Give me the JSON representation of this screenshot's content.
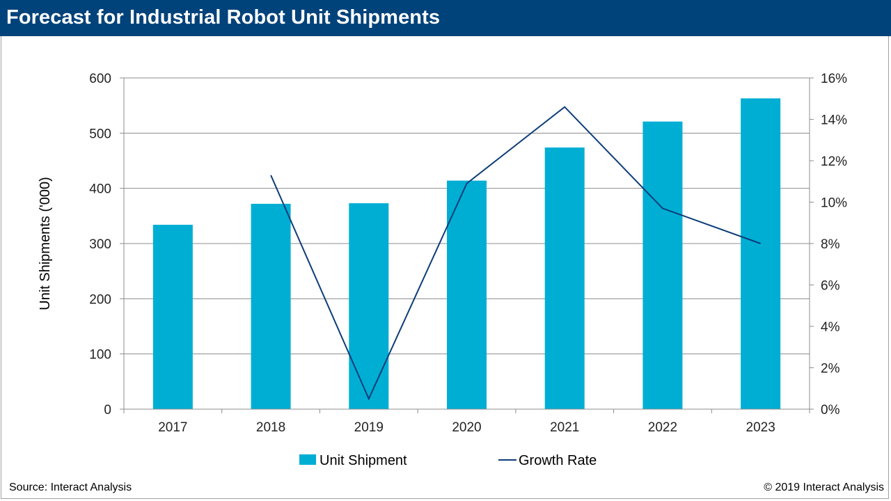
{
  "header": {
    "title": "Forecast for Industrial Robot Unit Shipments"
  },
  "footer": {
    "source": "Source: Interact Analysis",
    "copyright": "© 2019 Interact Analysis"
  },
  "colors": {
    "header_bg": "#00427a",
    "bar": "#00aed4",
    "line": "#0d3c78",
    "grid": "#8c8c8c"
  },
  "chart_data": {
    "type": "bar",
    "title": "",
    "xlabel": "",
    "ylabel": "Unit Shipments ('000)",
    "y2label": "",
    "categories": [
      "2017",
      "2018",
      "2019",
      "2020",
      "2021",
      "2022",
      "2023"
    ],
    "ylim": [
      0,
      600
    ],
    "yticks": [
      "0",
      "100",
      "200",
      "300",
      "400",
      "500",
      "600"
    ],
    "y2lim": [
      0,
      16
    ],
    "y2ticks": [
      "0%",
      "2%",
      "4%",
      "6%",
      "8%",
      "10%",
      "12%",
      "14%",
      "16%"
    ],
    "grid": true,
    "legend_position": "bottom",
    "series": [
      {
        "name": "Unit Shipment",
        "type": "bar",
        "axis": "left",
        "values": [
          334,
          372,
          373,
          414,
          474,
          521,
          563
        ]
      },
      {
        "name": "Growth Rate",
        "type": "line",
        "axis": "right",
        "values": [
          null,
          11.3,
          0.5,
          10.9,
          14.6,
          9.7,
          8.0
        ]
      }
    ]
  }
}
